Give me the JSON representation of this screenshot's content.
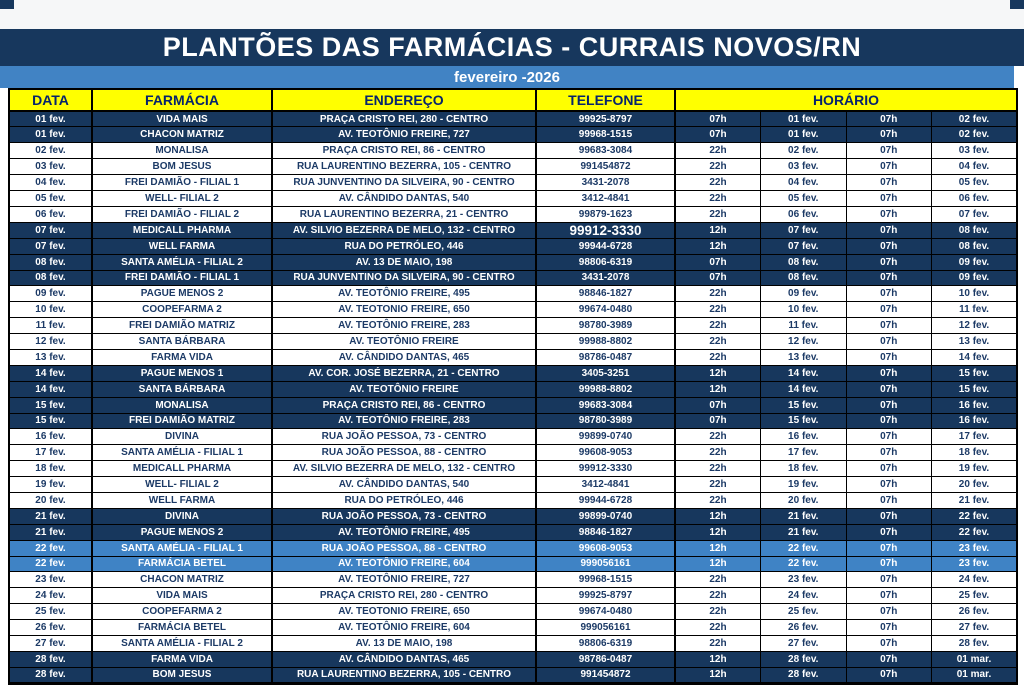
{
  "page": {
    "title": "PLANTÕES DAS FARMÁCIAS - CURRAIS NOVOS/RN",
    "subtitle": "fevereiro -2026"
  },
  "colors": {
    "navy": "#17375d",
    "medium_blue": "#3f83c5",
    "header_yellow": "#ffff00",
    "header_text": "#06246c",
    "row_text_dark": "#1c3a66",
    "row_text_light": "#ffffff"
  },
  "table": {
    "headers": [
      "DATA",
      "FARMÁCIA",
      "ENDEREÇO",
      "TELEFONE",
      "HORÁRIO"
    ],
    "rows": [
      {
        "cells": [
          "01 fev.",
          "VIDA MAIS",
          "PRAÇA CRISTO REI, 280 - CENTRO",
          "99925-8797",
          "07h",
          "01 fev.",
          "07h",
          "02 fev."
        ],
        "theme": "navy"
      },
      {
        "cells": [
          "01 fev.",
          "CHACON MATRIZ",
          "AV. TEOTÔNIO FREIRE, 727",
          "99968-1515",
          "07h",
          "01 fev.",
          "07h",
          "02 fev."
        ],
        "theme": "navy"
      },
      {
        "cells": [
          "02 fev.",
          "MONALISA",
          "PRAÇA CRISTO REI, 86 - CENTRO",
          "99683-3084",
          "22h",
          "02 fev.",
          "07h",
          "03 fev."
        ],
        "theme": "white"
      },
      {
        "cells": [
          "03 fev.",
          "BOM JESUS",
          "RUA LAURENTINO BEZERRA, 105 - CENTRO",
          "991454872",
          "22h",
          "03 fev.",
          "07h",
          "04 fev."
        ],
        "theme": "white"
      },
      {
        "cells": [
          "04 fev.",
          "FREI DAMIÃO - FILIAL 1",
          "RUA JUNVENTINO DA SILVEIRA, 90 - CENTRO",
          "3431-2078",
          "22h",
          "04 fev.",
          "07h",
          "05 fev."
        ],
        "theme": "white"
      },
      {
        "cells": [
          "05 fev.",
          "WELL- FILIAL 2",
          "AV. CÂNDIDO DANTAS, 540",
          "3412-4841",
          "22h",
          "05 fev.",
          "07h",
          "06 fev."
        ],
        "theme": "white"
      },
      {
        "cells": [
          "06 fev.",
          "FREI DAMIÃO - FILIAL 2",
          "RUA LAURENTINO BEZERRA, 21 - CENTRO",
          "99879-1623",
          "22h",
          "06 fev.",
          "07h",
          "07 fev."
        ],
        "theme": "white"
      },
      {
        "cells": [
          "07 fev.",
          "MEDICALL PHARMA",
          "AV. SILVIO BEZERRA DE MELO, 132 - CENTRO",
          "99912-3330",
          "12h",
          "07 fev.",
          "07h",
          "08 fev."
        ],
        "theme": "navy",
        "phone_large": true
      },
      {
        "cells": [
          "07 fev.",
          "WELL FARMA",
          "RUA DO PETRÓLEO, 446",
          "99944-6728",
          "12h",
          "07 fev.",
          "07h",
          "08 fev."
        ],
        "theme": "navy"
      },
      {
        "cells": [
          "08 fev.",
          "SANTA AMÉLIA - FILIAL 2",
          "AV. 13 DE MAIO, 198",
          "98806-6319",
          "07h",
          "08 fev.",
          "07h",
          "09 fev."
        ],
        "theme": "navy"
      },
      {
        "cells": [
          "08 fev.",
          "FREI DAMIÃO - FILIAL 1",
          "RUA JUNVENTINO DA SILVEIRA, 90 - CENTRO",
          "3431-2078",
          "07h",
          "08 fev.",
          "07h",
          "09 fev."
        ],
        "theme": "navy"
      },
      {
        "cells": [
          "09 fev.",
          "PAGUE MENOS 2",
          "AV. TEOTÔNIO FREIRE, 495",
          "98846-1827",
          "22h",
          "09 fev.",
          "07h",
          "10 fev."
        ],
        "theme": "white"
      },
      {
        "cells": [
          "10 fev.",
          "COOPEFARMA 2",
          "AV. TEOTONIO FREIRE, 650",
          "99674-0480",
          "22h",
          "10 fev.",
          "07h",
          "11 fev."
        ],
        "theme": "white"
      },
      {
        "cells": [
          "11 fev.",
          "FREI DAMIÃO MATRIZ",
          "AV. TEOTÔNIO FREIRE, 283",
          "98780-3989",
          "22h",
          "11 fev.",
          "07h",
          "12 fev."
        ],
        "theme": "white"
      },
      {
        "cells": [
          "12 fev.",
          "SANTA BÁRBARA",
          "AV. TEOTÔNIO FREIRE",
          "99988-8802",
          "22h",
          "12 fev.",
          "07h",
          "13 fev."
        ],
        "theme": "white"
      },
      {
        "cells": [
          "13 fev.",
          "FARMA VIDA",
          "AV. CÂNDIDO DANTAS, 465",
          "98786-0487",
          "22h",
          "13 fev.",
          "07h",
          "14 fev."
        ],
        "theme": "white"
      },
      {
        "cells": [
          "14 fev.",
          "PAGUE MENOS 1",
          "AV. COR. JOSÉ BEZERRA, 21 - CENTRO",
          "3405-3251",
          "12h",
          "14 fev.",
          "07h",
          "15 fev."
        ],
        "theme": "navy"
      },
      {
        "cells": [
          "14 fev.",
          "SANTA BÁRBARA",
          "AV. TEOTÔNIO FREIRE",
          "99988-8802",
          "12h",
          "14 fev.",
          "07h",
          "15 fev."
        ],
        "theme": "navy"
      },
      {
        "cells": [
          "15 fev.",
          "MONALISA",
          "PRAÇA CRISTO REI, 86 - CENTRO",
          "99683-3084",
          "07h",
          "15 fev.",
          "07h",
          "16 fev."
        ],
        "theme": "navy"
      },
      {
        "cells": [
          "15 fev.",
          "FREI DAMIÃO MATRIZ",
          "AV. TEOTÔNIO FREIRE, 283",
          "98780-3989",
          "07h",
          "15 fev.",
          "07h",
          "16 fev."
        ],
        "theme": "navy"
      },
      {
        "cells": [
          "16 fev.",
          "DIVINA",
          "RUA JOÃO PESSOA, 73 - CENTRO",
          "99899-0740",
          "22h",
          "16 fev.",
          "07h",
          "17 fev."
        ],
        "theme": "white"
      },
      {
        "cells": [
          "17 fev.",
          "SANTA AMÉLIA - FILIAL 1",
          "RUA JOÃO PESSOA, 88 - CENTRO",
          "99608-9053",
          "22h",
          "17 fev.",
          "07h",
          "18 fev."
        ],
        "theme": "white"
      },
      {
        "cells": [
          "18 fev.",
          "MEDICALL PHARMA",
          "AV. SILVIO BEZERRA DE MELO, 132 - CENTRO",
          "99912-3330",
          "22h",
          "18 fev.",
          "07h",
          "19 fev."
        ],
        "theme": "white"
      },
      {
        "cells": [
          "19 fev.",
          "WELL- FILIAL 2",
          "AV. CÂNDIDO DANTAS, 540",
          "3412-4841",
          "22h",
          "19 fev.",
          "07h",
          "20 fev."
        ],
        "theme": "white"
      },
      {
        "cells": [
          "20 fev.",
          "WELL FARMA",
          "RUA DO PETRÓLEO, 446",
          "99944-6728",
          "22h",
          "20 fev.",
          "07h",
          "21 fev."
        ],
        "theme": "white"
      },
      {
        "cells": [
          "21 fev.",
          "DIVINA",
          "RUA JOÃO PESSOA, 73 - CENTRO",
          "99899-0740",
          "12h",
          "21 fev.",
          "07h",
          "22 fev."
        ],
        "theme": "navy"
      },
      {
        "cells": [
          "21 fev.",
          "PAGUE MENOS 2",
          "AV. TEOTÔNIO FREIRE, 495",
          "98846-1827",
          "12h",
          "21 fev.",
          "07h",
          "22 fev."
        ],
        "theme": "navy"
      },
      {
        "cells": [
          "22 fev.",
          "SANTA AMÉLIA - FILIAL 1",
          "RUA JOÃO PESSOA, 88 - CENTRO",
          "99608-9053",
          "12h",
          "22 fev.",
          "07h",
          "23 fev."
        ],
        "theme": "blue"
      },
      {
        "cells": [
          "22 fev.",
          "FARMÁCIA BETEL",
          "AV. TEOTÔNIO FREIRE, 604",
          "999056161",
          "12h",
          "22 fev.",
          "07h",
          "23 fev."
        ],
        "theme": "blue"
      },
      {
        "cells": [
          "23 fev.",
          "CHACON MATRIZ",
          "AV. TEOTÔNIO FREIRE, 727",
          "99968-1515",
          "22h",
          "23 fev.",
          "07h",
          "24 fev."
        ],
        "theme": "white"
      },
      {
        "cells": [
          "24 fev.",
          "VIDA MAIS",
          "PRAÇA CRISTO REI, 280 - CENTRO",
          "99925-8797",
          "22h",
          "24 fev.",
          "07h",
          "25 fev."
        ],
        "theme": "white"
      },
      {
        "cells": [
          "25 fev.",
          "COOPEFARMA 2",
          "AV. TEOTONIO FREIRE, 650",
          "99674-0480",
          "22h",
          "25 fev.",
          "07h",
          "26 fev."
        ],
        "theme": "white"
      },
      {
        "cells": [
          "26 fev.",
          "FARMÁCIA BETEL",
          "AV. TEOTÔNIO FREIRE, 604",
          "999056161",
          "22h",
          "26 fev.",
          "07h",
          "27 fev."
        ],
        "theme": "white"
      },
      {
        "cells": [
          "27 fev.",
          "SANTA AMÉLIA - FILIAL 2",
          "AV. 13 DE MAIO, 198",
          "98806-6319",
          "22h",
          "27 fev.",
          "07h",
          "28 fev."
        ],
        "theme": "white"
      },
      {
        "cells": [
          "28 fev.",
          "FARMA VIDA",
          "AV. CÂNDIDO DANTAS, 465",
          "98786-0487",
          "12h",
          "28 fev.",
          "07h",
          "01 mar."
        ],
        "theme": "navy"
      },
      {
        "cells": [
          "28 fev.",
          "BOM JESUS",
          "RUA LAURENTINO BEZERRA, 105 - CENTRO",
          "991454872",
          "12h",
          "28 fev.",
          "07h",
          "01 mar."
        ],
        "theme": "navy"
      }
    ]
  }
}
